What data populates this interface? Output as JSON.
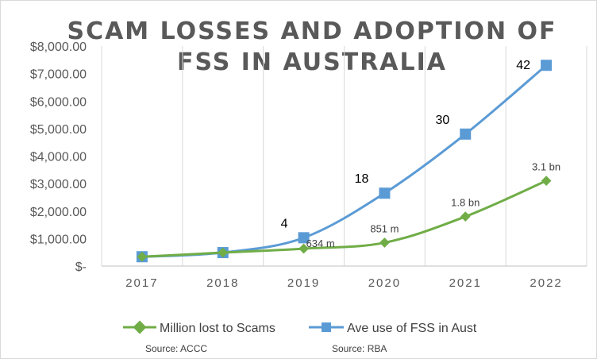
{
  "chart_data": {
    "type": "line",
    "title_lines": [
      "SCAM LOSSES AND ADOPTION OF",
      "FSS IN AUSTRALIA"
    ],
    "categories": [
      "2017",
      "2018",
      "2019",
      "2020",
      "2021",
      "2022"
    ],
    "y_ticks": [
      "$-",
      "$1,000.00",
      "$2,000.00",
      "$3,000.00",
      "$4,000.00",
      "$5,000.00",
      "$6,000.00",
      "$7,000.00",
      "$8,000.00"
    ],
    "ylim": [
      0,
      8000
    ],
    "grid": "vertical",
    "legend_position": "bottom",
    "series": [
      {
        "name": "Million lost to Scams",
        "color": "#70AD47",
        "marker": "diamond",
        "values": [
          340,
          490,
          634,
          851,
          1800,
          3100
        ],
        "data_labels": [
          "",
          "",
          "634 m",
          "851 m",
          "1.8 bn",
          "3.1 bn"
        ],
        "source": "Source: ACCC"
      },
      {
        "name": "Ave use of FSS in Aust",
        "color": "#5B9BD5",
        "marker": "square",
        "values": [
          340,
          490,
          1030,
          2650,
          4800,
          7300
        ],
        "data_labels": [
          "",
          "",
          "4",
          "18",
          "30",
          "42"
        ],
        "source": "Source: RBA"
      }
    ]
  }
}
